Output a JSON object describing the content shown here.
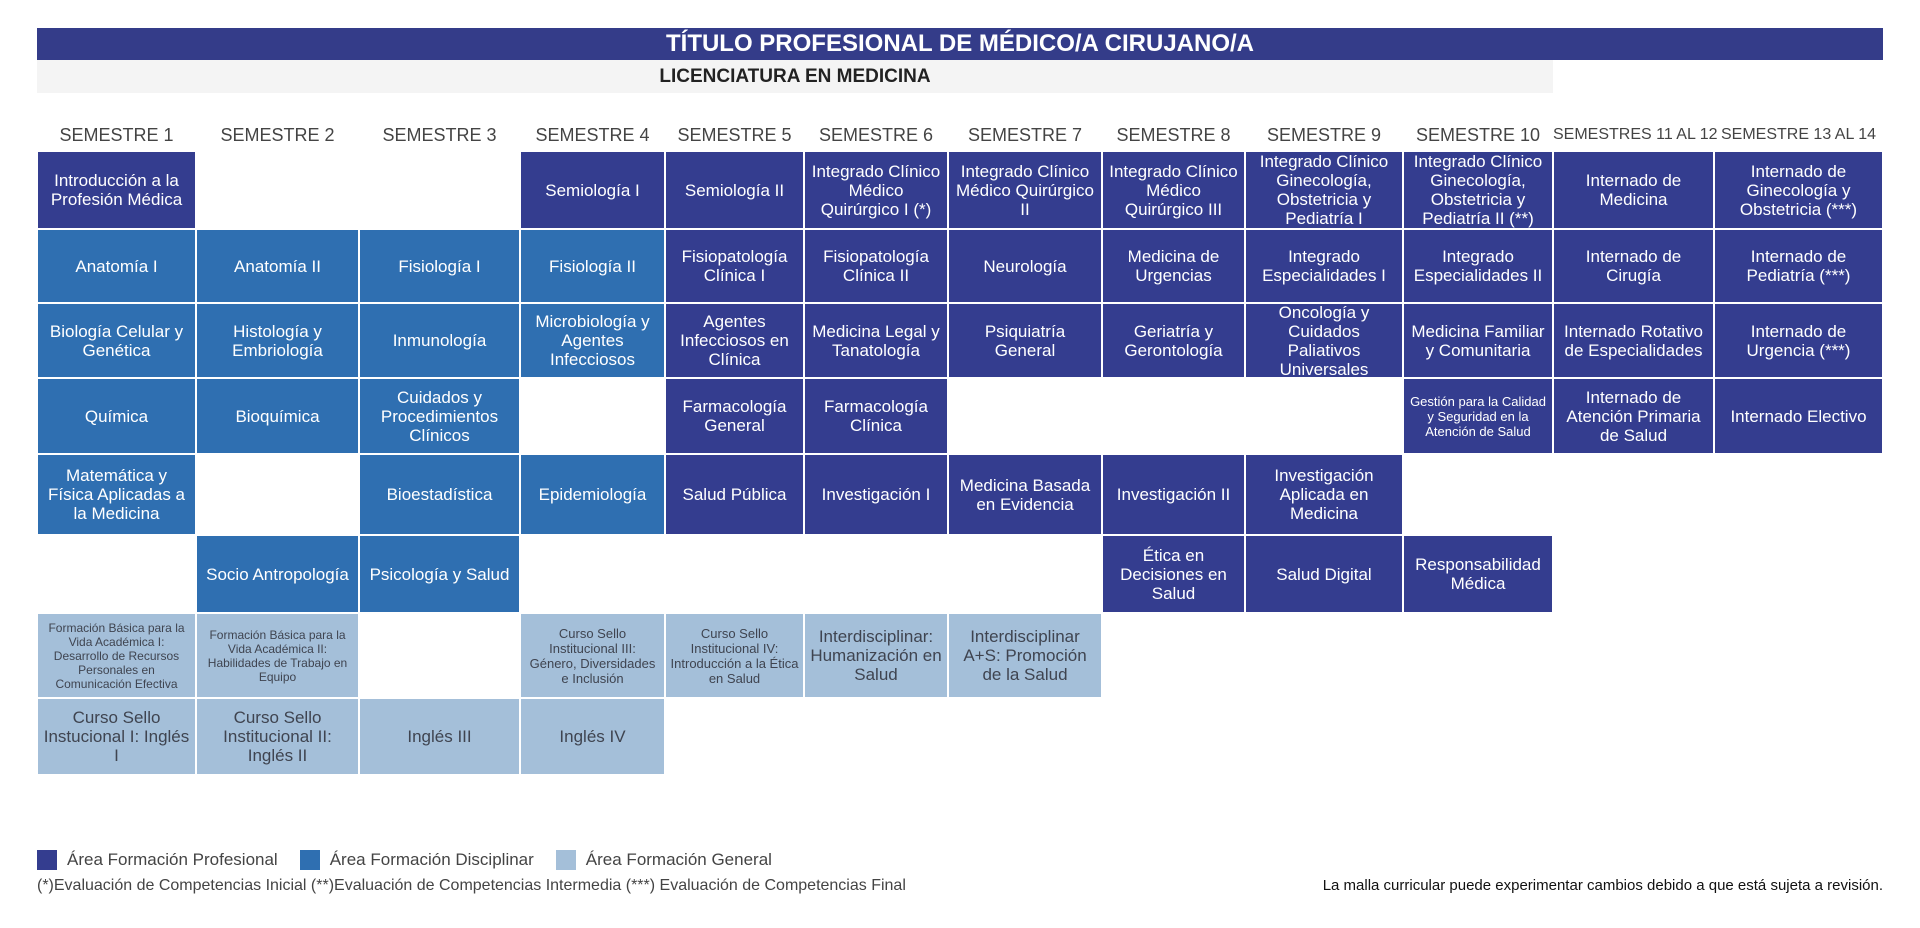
{
  "title": "TÍTULO PROFESIONAL DE  MÉDICO/A CIRUJANO/A",
  "subtitle": "LICENCIATURA EN MEDICINA",
  "colors": {
    "profesional": "#343d8f",
    "disciplinar": "#2f6fb1",
    "general": "#a4bfd9"
  },
  "semesters": [
    {
      "header": "SEMESTRE 1",
      "courses": [
        {
          "name": "Introducción a la Profesión Médica",
          "area": "P"
        },
        {
          "name": "Anatomía I",
          "area": "D"
        },
        {
          "name": "Biología Celular y Genética",
          "area": "D"
        },
        {
          "name": "Química",
          "area": "D"
        },
        {
          "name": "Matemática y Física Aplicadas a la Medicina",
          "area": "D"
        },
        {
          "name": "Formación Básica para la Vida Académica I: Desarrollo de Recursos Personales en Comunicación Efectiva",
          "area": "G"
        },
        {
          "name": "Curso Sello Instucional I: Inglés I",
          "area": "G"
        }
      ]
    },
    {
      "header": "SEMESTRE 2",
      "courses": [
        {
          "name": "Anatomía II",
          "area": "D"
        },
        {
          "name": "Histología y Embriología",
          "area": "D"
        },
        {
          "name": "Bioquímica",
          "area": "D"
        },
        {
          "name": "Socio Antropología",
          "area": "D"
        },
        {
          "name": "Formación Básica para la Vida Académica II: Habilidades de Trabajo en Equipo",
          "area": "G"
        },
        {
          "name": "Curso Sello Institucional II: Inglés II",
          "area": "G"
        }
      ]
    },
    {
      "header": "SEMESTRE 3",
      "courses": [
        {
          "name": "Fisiología I",
          "area": "D"
        },
        {
          "name": "Inmunología",
          "area": "D"
        },
        {
          "name": "Cuidados y Procedimientos Clínicos",
          "area": "D"
        },
        {
          "name": "Bioestadística",
          "area": "D"
        },
        {
          "name": "Psicología y Salud",
          "area": "D"
        },
        {
          "name": "Inglés III",
          "area": "G"
        }
      ]
    },
    {
      "header": "SEMESTRE 4",
      "courses": [
        {
          "name": "Semiología I",
          "area": "P"
        },
        {
          "name": "Fisiología II",
          "area": "D"
        },
        {
          "name": "Microbiología y Agentes Infecciosos",
          "area": "D"
        },
        {
          "name": "Epidemiología",
          "area": "D"
        },
        {
          "name": "Curso Sello Institucional III: Género, Diversidades e Inclusión",
          "area": "G"
        },
        {
          "name": "Inglés IV",
          "area": "G"
        }
      ]
    },
    {
      "header": "SEMESTRE 5",
      "courses": [
        {
          "name": "Semiología II",
          "area": "P"
        },
        {
          "name": "Fisiopatología Clínica I",
          "area": "P"
        },
        {
          "name": "Agentes Infecciosos en Clínica",
          "area": "P"
        },
        {
          "name": "Farmacología General",
          "area": "P"
        },
        {
          "name": "Salud Pública",
          "area": "P"
        },
        {
          "name": "Curso Sello Institucional IV: Introducción a la Ética en Salud",
          "area": "G"
        }
      ]
    },
    {
      "header": "SEMESTRE 6",
      "courses": [
        {
          "name": "Integrado Clínico Médico Quirúrgico I (*)",
          "area": "P"
        },
        {
          "name": "Fisiopatología Clínica II",
          "area": "P"
        },
        {
          "name": "Medicina Legal y Tanatología",
          "area": "P"
        },
        {
          "name": "Farmacología Clínica",
          "area": "P"
        },
        {
          "name": "Investigación I",
          "area": "P"
        },
        {
          "name": "Interdisciplinar: Humanización en Salud",
          "area": "G"
        }
      ]
    },
    {
      "header": "SEMESTRE 7",
      "courses": [
        {
          "name": "Integrado Clínico Médico Quirúrgico II",
          "area": "P"
        },
        {
          "name": "Neurología",
          "area": "P"
        },
        {
          "name": "Psiquiatría General",
          "area": "P"
        },
        {
          "name": "Medicina Basada en Evidencia",
          "area": "P"
        },
        {
          "name": "Interdisciplinar A+S: Promoción de la Salud",
          "area": "G"
        }
      ]
    },
    {
      "header": "SEMESTRE 8",
      "courses": [
        {
          "name": "Integrado Clínico Médico Quirúrgico III",
          "area": "P"
        },
        {
          "name": "Medicina de Urgencias",
          "area": "P"
        },
        {
          "name": "Geriatría y Gerontología",
          "area": "P"
        },
        {
          "name": "Investigación II",
          "area": "P"
        },
        {
          "name": "Ética en Decisiones en Salud",
          "area": "P"
        }
      ]
    },
    {
      "header": "SEMESTRE 9",
      "courses": [
        {
          "name": "Integrado Clínico Ginecología, Obstetricia y Pediatría I",
          "area": "P"
        },
        {
          "name": "Integrado Especialidades I",
          "area": "P"
        },
        {
          "name": "Oncología y Cuidados Paliativos Universales",
          "area": "P"
        },
        {
          "name": "Investigación Aplicada en Medicina",
          "area": "P"
        },
        {
          "name": "Salud Digital",
          "area": "P"
        }
      ]
    },
    {
      "header": "SEMESTRE 10",
      "courses": [
        {
          "name": "Integrado Clínico Ginecología, Obstetricia y Pediatría II (**)",
          "area": "P"
        },
        {
          "name": "Integrado Especialidades II",
          "area": "P"
        },
        {
          "name": "Medicina Familiar y Comunitaria",
          "area": "P"
        },
        {
          "name": "Gestión para la Calidad y Seguridad en la Atención de Salud",
          "area": "P"
        },
        {
          "name": "Responsabilidad Médica",
          "area": "P"
        }
      ]
    },
    {
      "header": "SEMESTRES 11 AL 12",
      "courses": [
        {
          "name": "Internado de Medicina",
          "area": "P"
        },
        {
          "name": "Internado de Cirugía",
          "area": "P"
        },
        {
          "name": "Internado Rotativo de Especialidades",
          "area": "P"
        },
        {
          "name": "Internado de Atención Primaria de Salud",
          "area": "P"
        }
      ]
    },
    {
      "header": "SEMESTRE 13 AL 14",
      "courses": [
        {
          "name": "Internado de Ginecología y Obstetricia (***)",
          "area": "P"
        },
        {
          "name": "Internado de Pediatría (***)",
          "area": "P"
        },
        {
          "name": "Internado de Urgencia (***)",
          "area": "P"
        },
        {
          "name": "Internado Electivo",
          "area": "P"
        }
      ]
    }
  ],
  "legend": [
    {
      "label": "Área Formación Profesional",
      "area": "P"
    },
    {
      "label": "Área Formación Disciplinar",
      "area": "D"
    },
    {
      "label": "Área Formación General",
      "area": "G"
    }
  ],
  "notes": "(*)Evaluación de Competencias Inicial  (**)Evaluación de Competencias Intermedia   (***) Evaluación de Competencias Final",
  "disclaimer": "La malla curricular puede experimentar cambios debido a que está sujeta a revisión."
}
